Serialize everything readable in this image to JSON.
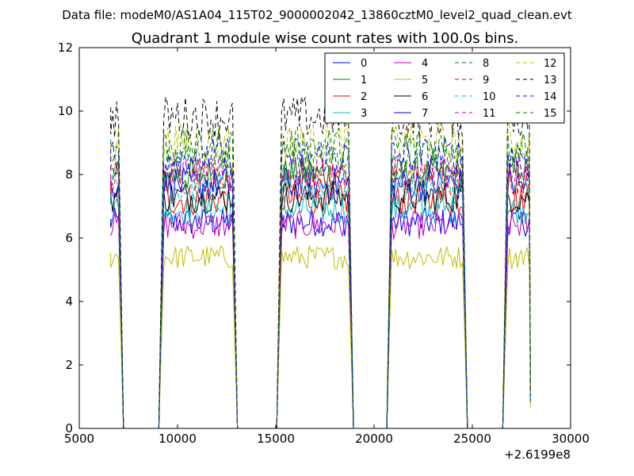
{
  "chart_data": {
    "type": "line",
    "suptitle": "Data file: modeM0/AS1A04_115T02_9000002042_13860cztM0_level2_quad_clean.evt",
    "title": "Quadrant 1 module wise count rates with 100.0s bins.",
    "xlabel": "",
    "ylabel": "",
    "x_offset_label": "+2.6199e8",
    "xlim": [
      5000,
      30000
    ],
    "ylim": [
      0,
      12
    ],
    "xticks": [
      5000,
      10000,
      15000,
      20000,
      25000,
      30000
    ],
    "xtick_labels": [
      "5000",
      "10000",
      "15000",
      "20000",
      "25000",
      "30000"
    ],
    "yticks": [
      0,
      2,
      4,
      6,
      8,
      10,
      12
    ],
    "ytick_labels": [
      "0",
      "2",
      "4",
      "6",
      "8",
      "10",
      "12"
    ],
    "grid": false,
    "legend_position": "top-right",
    "legend_columns": 4,
    "bin_seconds": 100,
    "segments": [
      {
        "start": 6600,
        "end": 7000
      },
      {
        "start": 9300,
        "end": 12800
      },
      {
        "start": 15300,
        "end": 18700
      },
      {
        "start": 20900,
        "end": 24500
      },
      {
        "start": 26800,
        "end": 27900
      }
    ],
    "series": [
      {
        "name": "0",
        "color": "#0000ff",
        "dash": "solid",
        "level": 6.5
      },
      {
        "name": "1",
        "color": "#008000",
        "dash": "solid",
        "level": 8.0
      },
      {
        "name": "2",
        "color": "#ff0000",
        "dash": "solid",
        "level": 7.2
      },
      {
        "name": "3",
        "color": "#00bfbf",
        "dash": "solid",
        "level": 6.9
      },
      {
        "name": "4",
        "color": "#bf00bf",
        "dash": "solid",
        "level": 6.4
      },
      {
        "name": "5",
        "color": "#bfbf00",
        "dash": "solid",
        "level": 5.4
      },
      {
        "name": "6",
        "color": "#000000",
        "dash": "solid",
        "level": 7.3
      },
      {
        "name": "7",
        "color": "#0000ff",
        "dash": "solid",
        "level": 7.7
      },
      {
        "name": "8",
        "color": "#008000",
        "dash": "dashed",
        "level": 8.3
      },
      {
        "name": "9",
        "color": "#ff0000",
        "dash": "dashed",
        "level": 7.9
      },
      {
        "name": "10",
        "color": "#00bfbf",
        "dash": "dashed",
        "level": 7.6
      },
      {
        "name": "11",
        "color": "#bf00bf",
        "dash": "dashed",
        "level": 8.1
      },
      {
        "name": "12",
        "color": "#bfbf00",
        "dash": "dashed",
        "level": 9.0
      },
      {
        "name": "13",
        "color": "#000000",
        "dash": "dashed",
        "level": 9.8
      },
      {
        "name": "14",
        "color": "#0000ff",
        "dash": "dashed",
        "level": 8.6
      },
      {
        "name": "15",
        "color": "#008000",
        "dash": "dashed",
        "level": 8.9
      }
    ]
  }
}
